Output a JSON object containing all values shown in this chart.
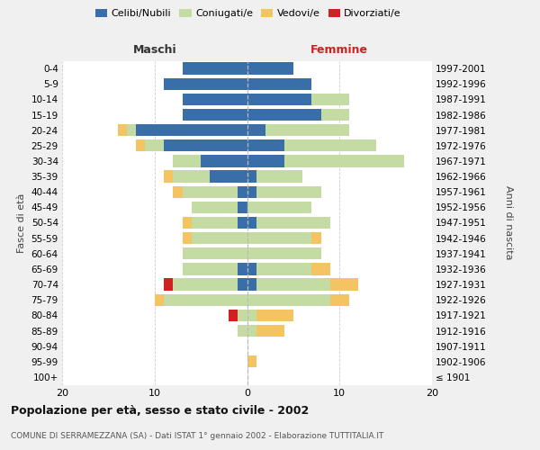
{
  "age_groups": [
    "0-4",
    "5-9",
    "10-14",
    "15-19",
    "20-24",
    "25-29",
    "30-34",
    "35-39",
    "40-44",
    "45-49",
    "50-54",
    "55-59",
    "60-64",
    "65-69",
    "70-74",
    "75-79",
    "80-84",
    "85-89",
    "90-94",
    "95-99",
    "100+"
  ],
  "birth_years": [
    "1997-2001",
    "1992-1996",
    "1987-1991",
    "1982-1986",
    "1977-1981",
    "1972-1976",
    "1967-1971",
    "1962-1966",
    "1957-1961",
    "1952-1956",
    "1947-1951",
    "1942-1946",
    "1937-1941",
    "1932-1936",
    "1927-1931",
    "1922-1926",
    "1917-1921",
    "1912-1916",
    "1907-1911",
    "1902-1906",
    "≤ 1901"
  ],
  "males": {
    "celibi": [
      7,
      9,
      7,
      7,
      12,
      9,
      5,
      4,
      1,
      1,
      1,
      0,
      0,
      1,
      1,
      0,
      0,
      0,
      0,
      0,
      0
    ],
    "coniugati": [
      0,
      0,
      0,
      0,
      1,
      2,
      3,
      4,
      6,
      5,
      5,
      6,
      7,
      6,
      7,
      9,
      1,
      1,
      0,
      0,
      0
    ],
    "vedovi": [
      0,
      0,
      0,
      0,
      1,
      1,
      0,
      1,
      1,
      0,
      1,
      1,
      0,
      0,
      0,
      1,
      0,
      0,
      0,
      0,
      0
    ],
    "divorziati": [
      0,
      0,
      0,
      0,
      0,
      0,
      0,
      0,
      0,
      0,
      0,
      0,
      0,
      0,
      1,
      0,
      1,
      0,
      0,
      0,
      0
    ]
  },
  "females": {
    "nubili": [
      5,
      7,
      7,
      8,
      2,
      4,
      4,
      1,
      1,
      0,
      1,
      0,
      0,
      1,
      1,
      0,
      0,
      0,
      0,
      0,
      0
    ],
    "coniugate": [
      0,
      0,
      4,
      3,
      9,
      10,
      13,
      5,
      7,
      7,
      8,
      7,
      8,
      6,
      8,
      9,
      1,
      1,
      0,
      0,
      0
    ],
    "vedove": [
      0,
      0,
      0,
      0,
      0,
      0,
      0,
      0,
      0,
      0,
      0,
      1,
      0,
      2,
      3,
      2,
      4,
      3,
      0,
      1,
      0
    ],
    "divorziate": [
      0,
      0,
      0,
      0,
      0,
      0,
      0,
      0,
      0,
      0,
      0,
      0,
      0,
      0,
      0,
      0,
      0,
      0,
      0,
      0,
      0
    ]
  },
  "colors": {
    "celibi_nubili": "#3a6ea8",
    "coniugati": "#c5dba4",
    "vedovi": "#f5c462",
    "divorziati": "#cc2222"
  },
  "xlim": 20,
  "title": "Popolazione per età, sesso e stato civile - 2002",
  "subtitle": "COMUNE DI SERRAMEZZANA (SA) - Dati ISTAT 1° gennaio 2002 - Elaborazione TUTTITALIA.IT",
  "ylabel_left": "Fasce di età",
  "ylabel_right": "Anni di nascita",
  "xlabel_left": "Maschi",
  "xlabel_right": "Femmine",
  "background_color": "#f0f0f0",
  "plot_background": "#ffffff"
}
